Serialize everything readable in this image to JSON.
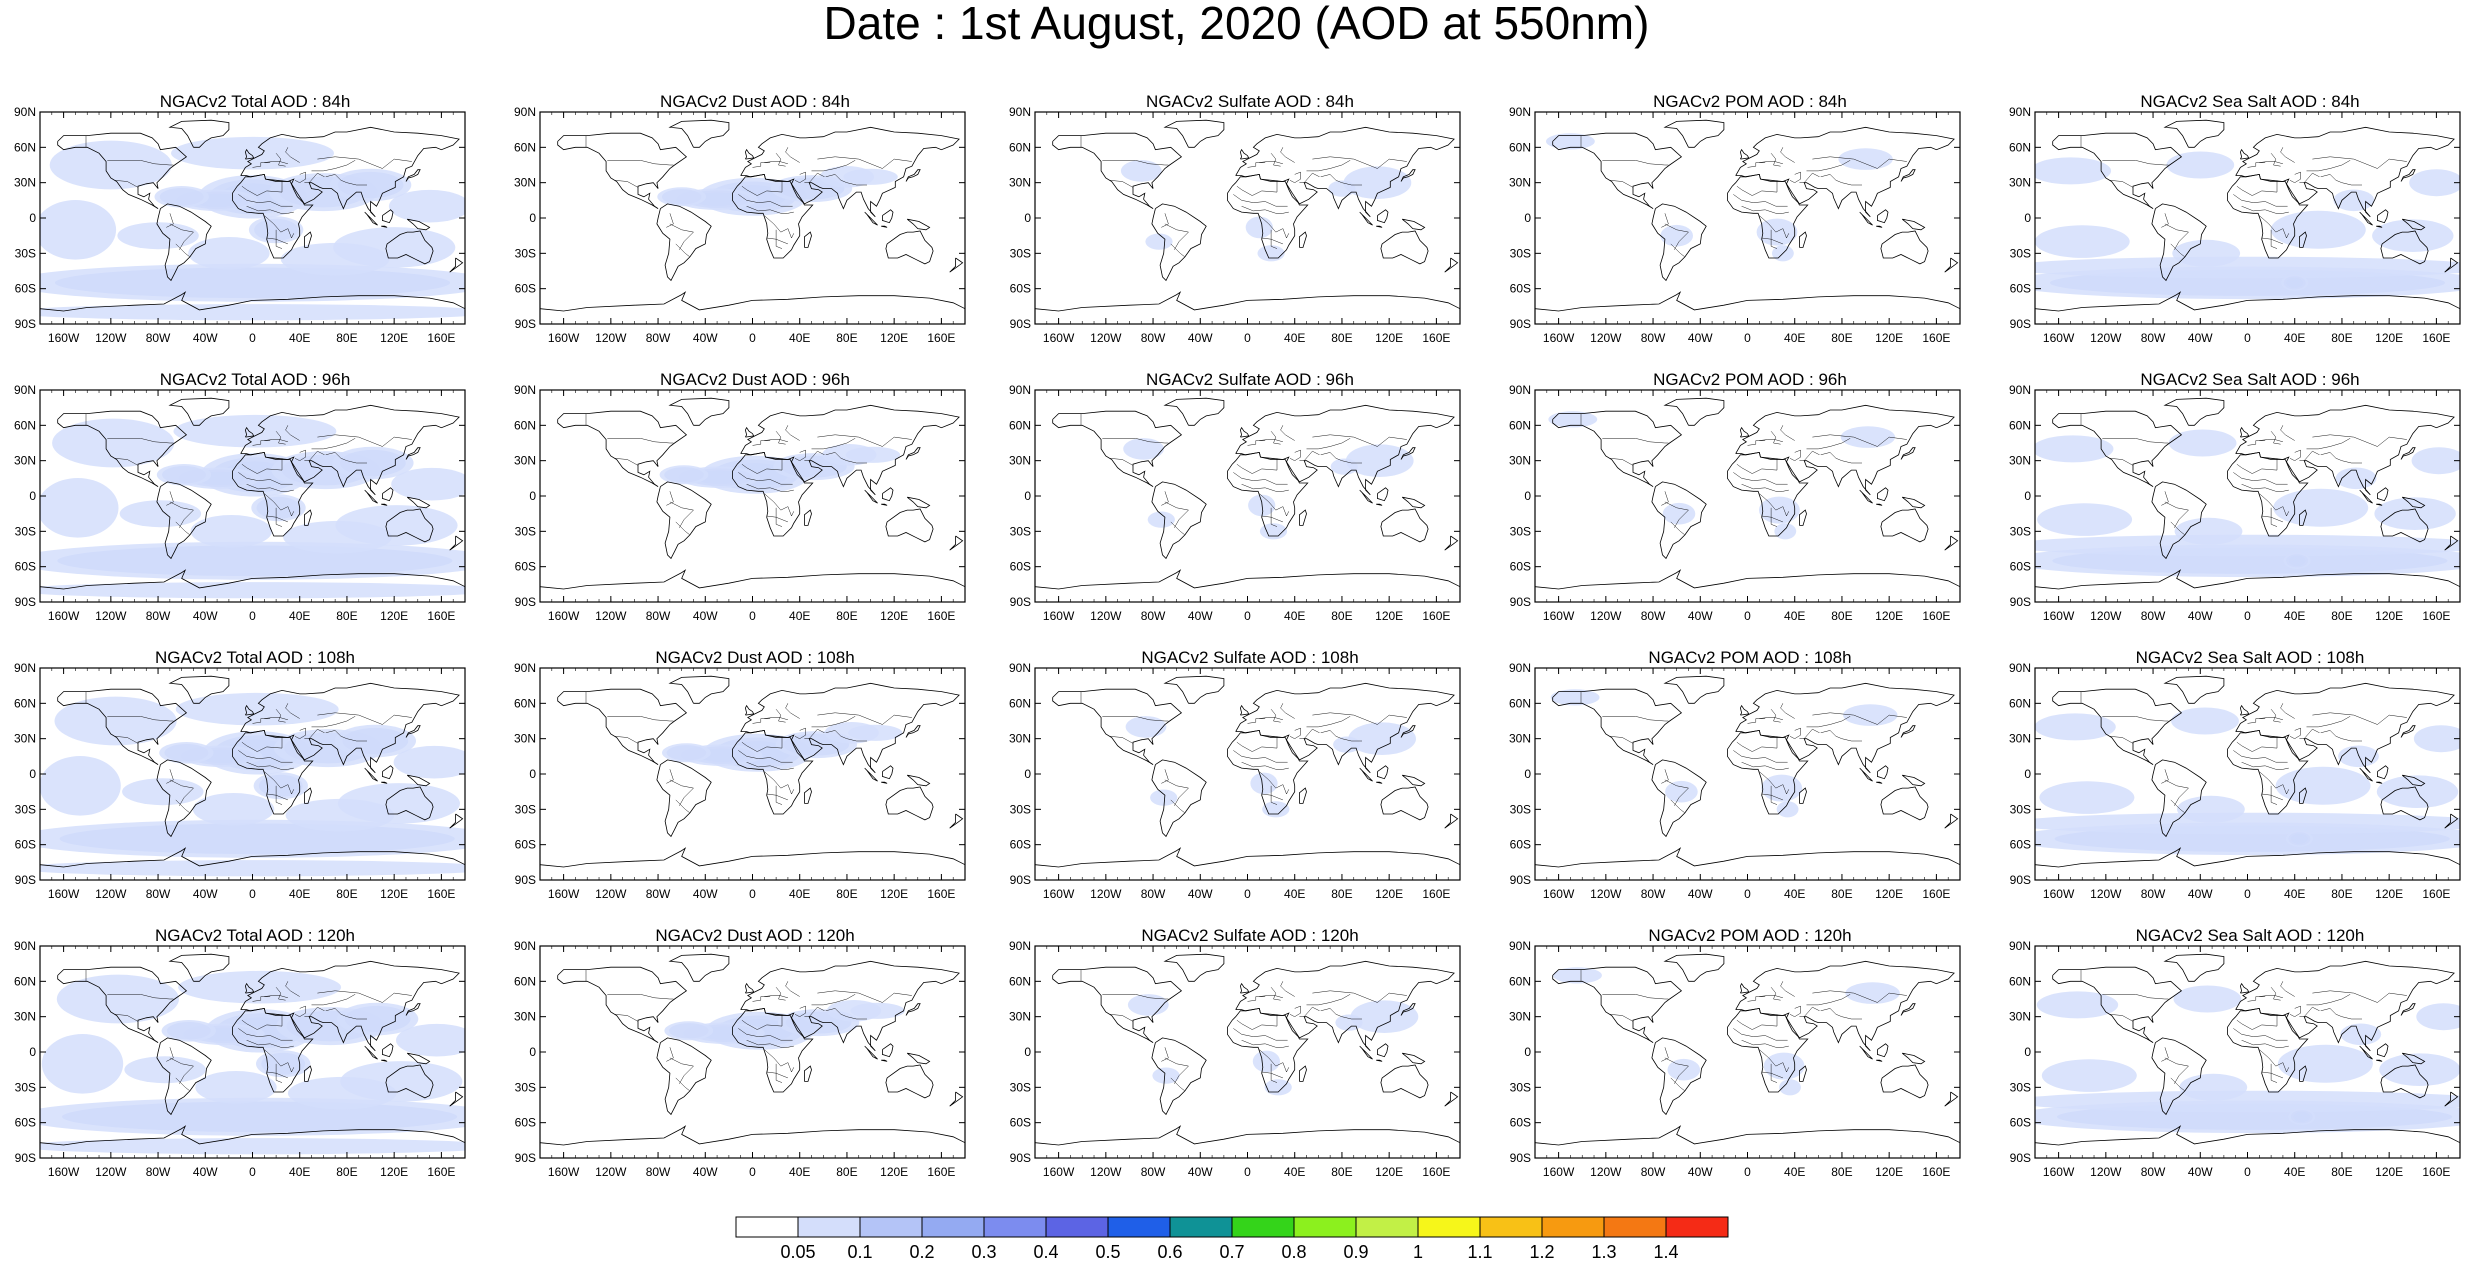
{
  "title": "Date : 1st August, 2020 (AOD at 550nm)",
  "lat_ticks": [
    "90N",
    "60N",
    "30N",
    "0",
    "30S",
    "60S",
    "90S"
  ],
  "lon_ticks": [
    "160W",
    "120W",
    "80W",
    "40W",
    "0",
    "40E",
    "80E",
    "120E",
    "160E"
  ],
  "lon_tick_values": [
    -160,
    -120,
    -80,
    -40,
    0,
    40,
    80,
    120,
    160
  ],
  "colorbar": {
    "labels": [
      "0.05",
      "0.1",
      "0.2",
      "0.3",
      "0.4",
      "0.5",
      "0.6",
      "0.7",
      "0.8",
      "0.9",
      "1",
      "1.1",
      "1.2",
      "1.3",
      "1.4"
    ],
    "colors": [
      "#ffffff",
      "#d4defb",
      "#b4c4f7",
      "#94aaf2",
      "#7c8cef",
      "#5c64e4",
      "#1f5fe8",
      "#0f9296",
      "#34d41a",
      "#8cf01e",
      "#c2f046",
      "#f6f61a",
      "#f8c116",
      "#f79a10",
      "#f47813",
      "#f52b16"
    ]
  },
  "panels": [
    {
      "title": "NGACv2 Total AOD : 84h",
      "kind": "total",
      "hour": 84
    },
    {
      "title": "NGACv2 Dust AOD : 84h",
      "kind": "dust",
      "hour": 84
    },
    {
      "title": "NGACv2 Sulfate AOD : 84h",
      "kind": "sulfate",
      "hour": 84
    },
    {
      "title": "NGACv2 POM AOD : 84h",
      "kind": "pom",
      "hour": 84
    },
    {
      "title": "NGACv2 Sea Salt AOD : 84h",
      "kind": "seasalt",
      "hour": 84
    },
    {
      "title": "NGACv2 Total AOD : 96h",
      "kind": "total",
      "hour": 96
    },
    {
      "title": "NGACv2 Dust AOD : 96h",
      "kind": "dust",
      "hour": 96
    },
    {
      "title": "NGACv2 Sulfate AOD : 96h",
      "kind": "sulfate",
      "hour": 96
    },
    {
      "title": "NGACv2 POM AOD : 96h",
      "kind": "pom",
      "hour": 96
    },
    {
      "title": "NGACv2 Sea Salt AOD : 96h",
      "kind": "seasalt",
      "hour": 96
    },
    {
      "title": "NGACv2 Total AOD : 108h",
      "kind": "total",
      "hour": 108
    },
    {
      "title": "NGACv2 Dust AOD : 108h",
      "kind": "dust",
      "hour": 108
    },
    {
      "title": "NGACv2 Sulfate AOD : 108h",
      "kind": "sulfate",
      "hour": 108
    },
    {
      "title": "NGACv2 POM AOD : 108h",
      "kind": "pom",
      "hour": 108
    },
    {
      "title": "NGACv2 Sea Salt AOD : 108h",
      "kind": "seasalt",
      "hour": 108
    },
    {
      "title": "NGACv2 Total AOD : 120h",
      "kind": "total",
      "hour": 120
    },
    {
      "title": "NGACv2 Dust AOD : 120h",
      "kind": "dust",
      "hour": 120
    },
    {
      "title": "NGACv2 Sulfate AOD : 120h",
      "kind": "sulfate",
      "hour": 120
    },
    {
      "title": "NGACv2 POM AOD : 120h",
      "kind": "pom",
      "hour": 120
    },
    {
      "title": "NGACv2 Sea Salt  AOD : 120h",
      "kind": "seasalt",
      "hour": 120
    }
  ]
}
